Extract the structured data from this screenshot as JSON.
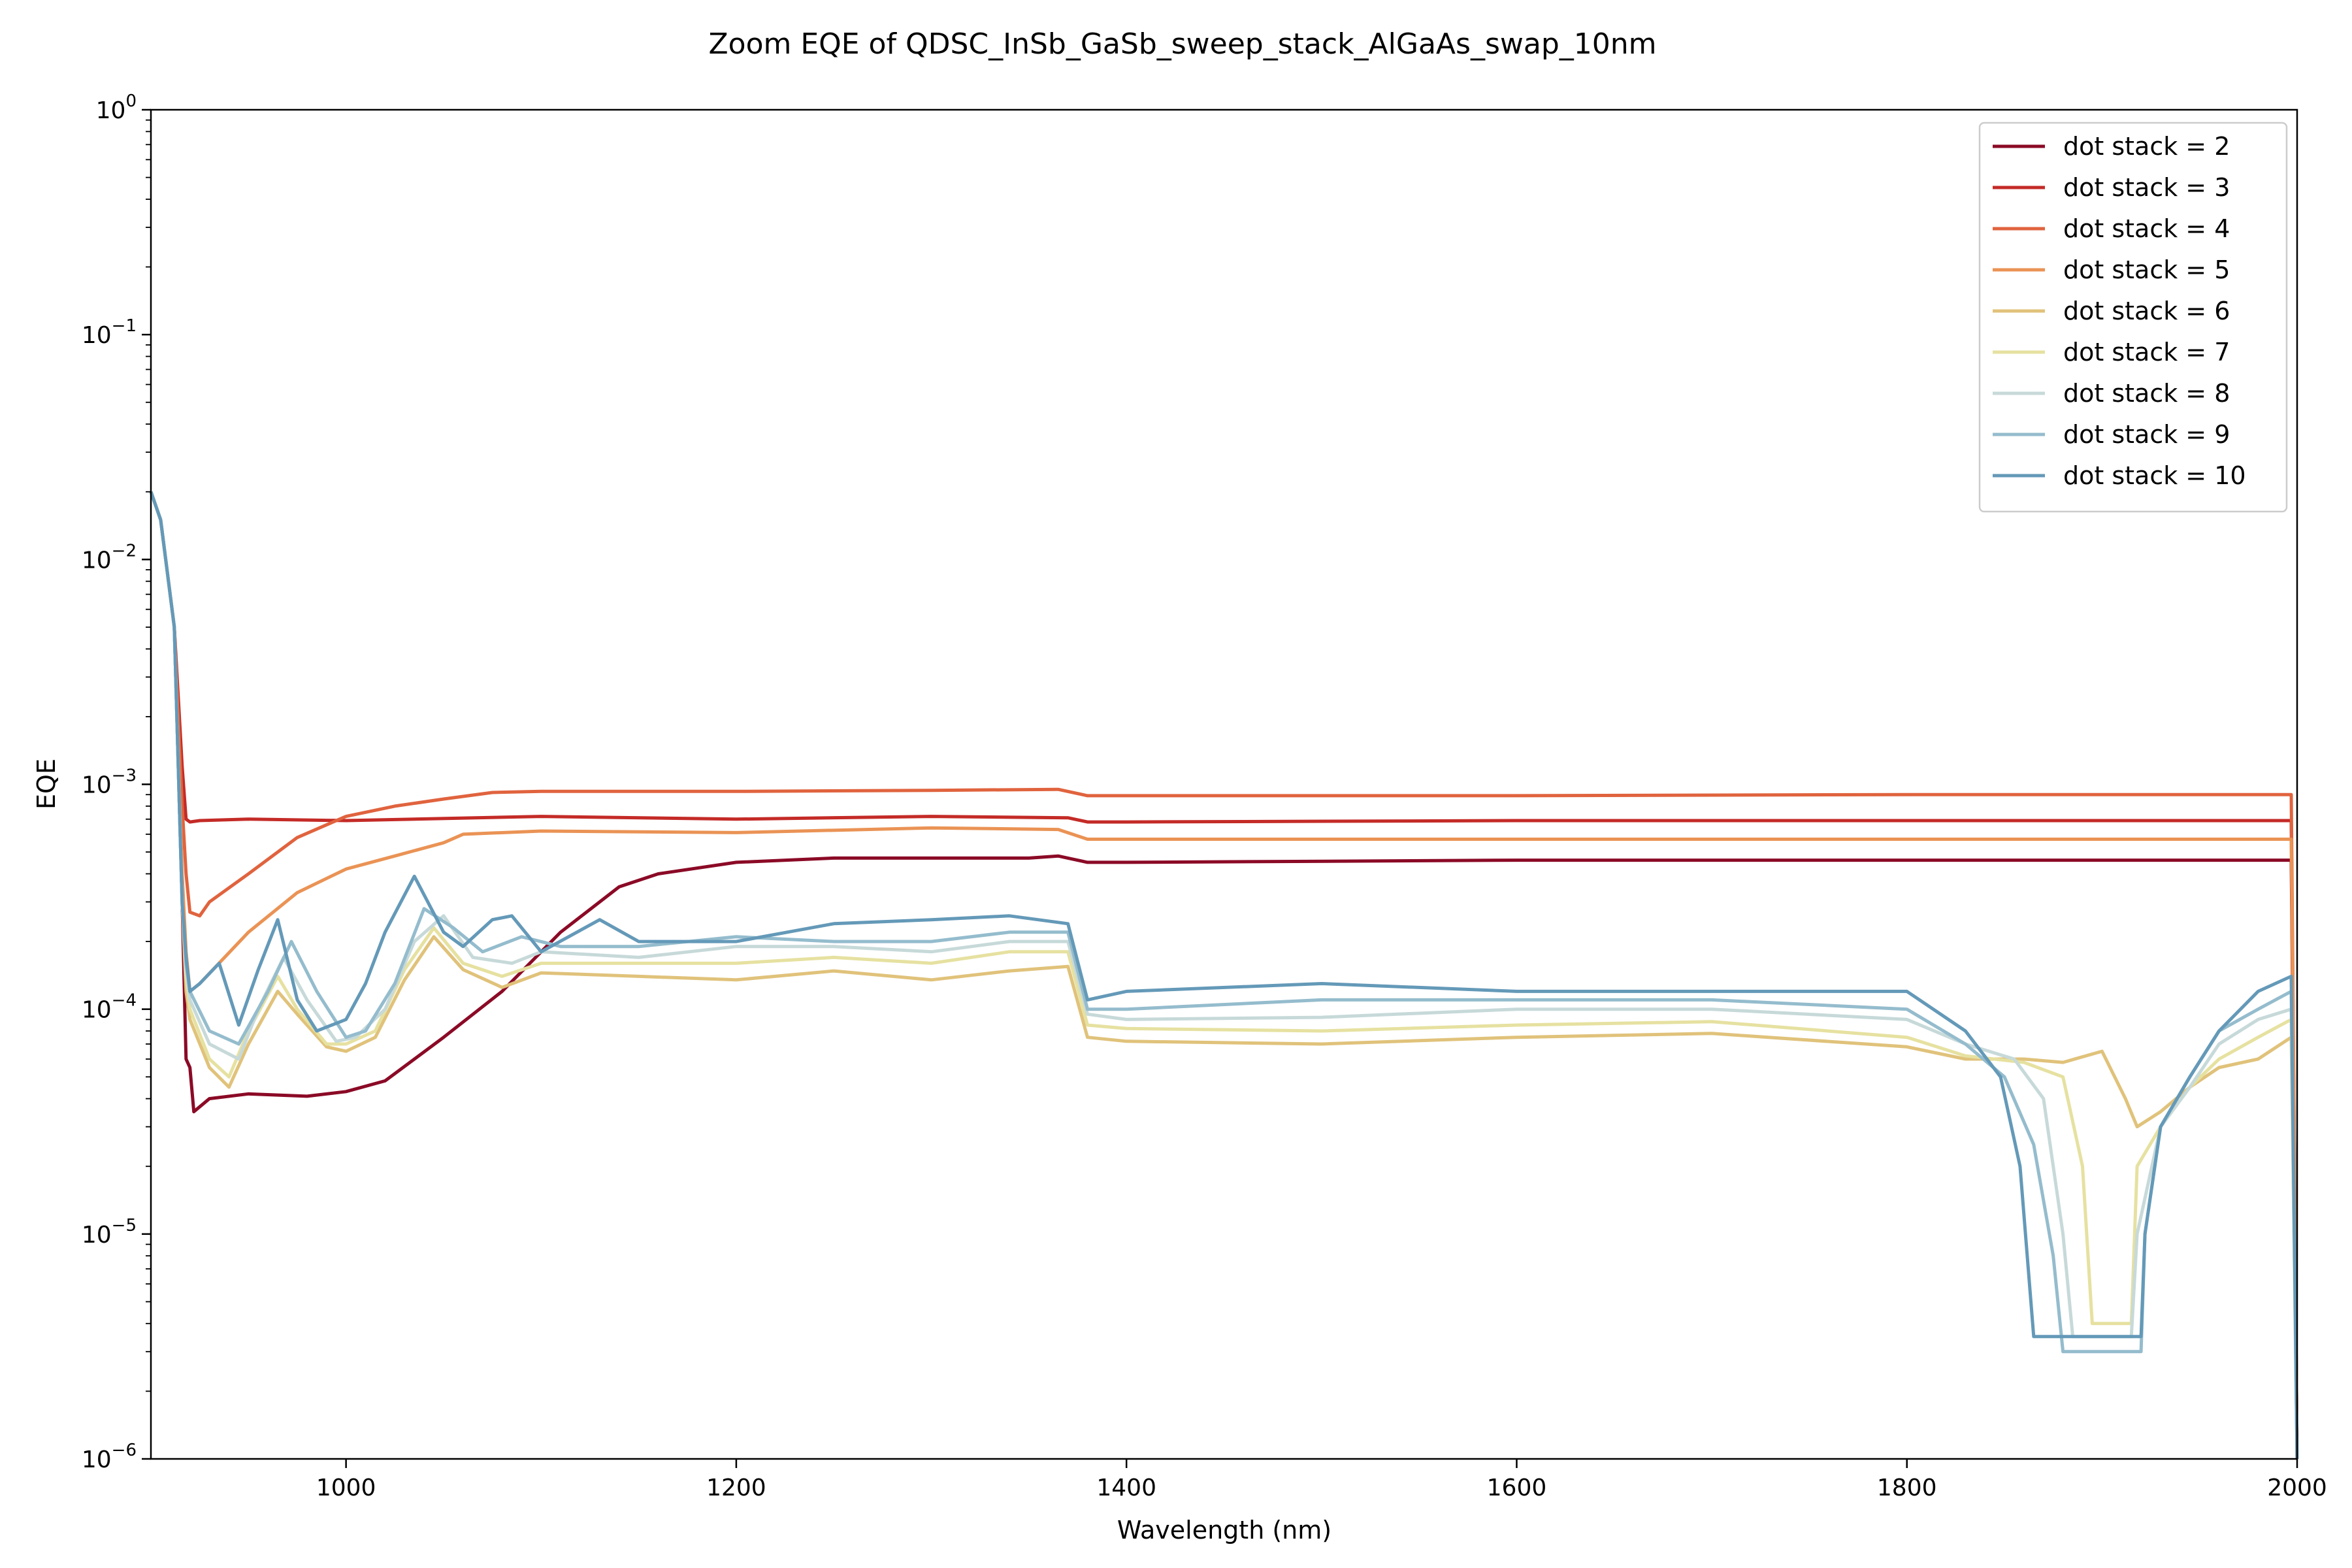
{
  "chart_data": {
    "type": "line",
    "title": "Zoom EQE of QDSC_InSb_GaSb_sweep_stack_AlGaAs_swap_10nm",
    "xlabel": "Wavelength (nm)",
    "ylabel": "EQE",
    "xlim": [
      900,
      2000
    ],
    "ylim": [
      1e-06,
      1
    ],
    "yscale": "log",
    "x_ticks": [
      "1000",
      "1200",
      "1400",
      "1600",
      "1800",
      "2000"
    ],
    "y_ticks": [
      {
        "base": "10",
        "exp": "−6",
        "value": 1e-06
      },
      {
        "base": "10",
        "exp": "−5",
        "value": 1e-05
      },
      {
        "base": "10",
        "exp": "−4",
        "value": 0.0001
      },
      {
        "base": "10",
        "exp": "−3",
        "value": 0.001
      },
      {
        "base": "10",
        "exp": "−2",
        "value": 0.01
      },
      {
        "base": "10",
        "exp": "−1",
        "value": 0.1
      },
      {
        "base": "10",
        "exp": "0",
        "value": 1
      }
    ],
    "grid": false,
    "legend_position": "top-right",
    "series": [
      {
        "name": "dot stack = 2",
        "color": "#8b0a26",
        "x": [
          900,
          905,
          912,
          916,
          918,
          920,
          922,
          930,
          950,
          980,
          1000,
          1020,
          1050,
          1080,
          1110,
          1140,
          1160,
          1200,
          1250,
          1300,
          1350,
          1365,
          1370,
          1380,
          1400,
          1600,
          1800,
          1997,
          2000
        ],
        "y": [
          0.02,
          0.015,
          0.005,
          0.0003,
          6e-05,
          5.5e-05,
          3.5e-05,
          4e-05,
          4.2e-05,
          4.1e-05,
          4.3e-05,
          4.8e-05,
          7.5e-05,
          0.00012,
          0.00022,
          0.00035,
          0.0004,
          0.00045,
          0.00047,
          0.00047,
          0.00047,
          0.00048,
          0.00047,
          0.00045,
          0.00045,
          0.00046,
          0.00046,
          0.00046,
          1e-06
        ]
      },
      {
        "name": "dot stack = 3",
        "color": "#c42b27",
        "x": [
          900,
          905,
          912,
          916,
          918,
          920,
          925,
          950,
          1000,
          1100,
          1200,
          1300,
          1370,
          1380,
          1400,
          1600,
          1800,
          1997,
          2000
        ],
        "y": [
          0.02,
          0.015,
          0.005,
          0.0012,
          0.0007,
          0.00068,
          0.00069,
          0.0007,
          0.00069,
          0.00072,
          0.0007,
          0.00072,
          0.00071,
          0.00068,
          0.00068,
          0.00069,
          0.00069,
          0.00069,
          1e-06
        ]
      },
      {
        "name": "dot stack = 4",
        "color": "#e0633e",
        "x": [
          900,
          905,
          912,
          916,
          918,
          920,
          925,
          930,
          950,
          975,
          1000,
          1025,
          1050,
          1075,
          1100,
          1200,
          1300,
          1365,
          1380,
          1400,
          1600,
          1800,
          1997,
          2000
        ],
        "y": [
          0.02,
          0.015,
          0.005,
          0.0008,
          0.0004,
          0.00027,
          0.00026,
          0.0003,
          0.0004,
          0.00058,
          0.00072,
          0.0008,
          0.00086,
          0.00092,
          0.00093,
          0.00093,
          0.00094,
          0.00095,
          0.00089,
          0.00089,
          0.00089,
          0.0009,
          0.0009,
          1e-06
        ]
      },
      {
        "name": "dot stack = 5",
        "color": "#ea9355",
        "x": [
          900,
          905,
          912,
          916,
          918,
          920,
          925,
          950,
          975,
          1000,
          1025,
          1050,
          1060,
          1100,
          1200,
          1300,
          1365,
          1380,
          1400,
          1600,
          1800,
          1997,
          2000
        ],
        "y": [
          0.02,
          0.015,
          0.005,
          0.0004,
          0.00018,
          0.00012,
          0.00013,
          0.00022,
          0.00033,
          0.00042,
          0.00048,
          0.00055,
          0.0006,
          0.00062,
          0.00061,
          0.00064,
          0.00063,
          0.00057,
          0.00057,
          0.00057,
          0.00057,
          0.00057,
          1e-06
        ]
      },
      {
        "name": "dot stack = 6",
        "color": "#e0c27a",
        "x": [
          900,
          905,
          912,
          916,
          918,
          920,
          930,
          940,
          950,
          965,
          975,
          990,
          1000,
          1015,
          1030,
          1045,
          1060,
          1080,
          1100,
          1150,
          1200,
          1250,
          1300,
          1340,
          1370,
          1380,
          1400,
          1500,
          1600,
          1700,
          1800,
          1830,
          1860,
          1880,
          1900,
          1912,
          1918,
          1930,
          1945,
          1960,
          1980,
          1997,
          2000
        ],
        "y": [
          0.02,
          0.015,
          0.005,
          0.0003,
          0.00012,
          9e-05,
          5.5e-05,
          4.5e-05,
          7e-05,
          0.00012,
          9.5e-05,
          6.8e-05,
          6.5e-05,
          7.5e-05,
          0.000135,
          0.00021,
          0.00015,
          0.000125,
          0.000145,
          0.00014,
          0.000135,
          0.000148,
          0.000135,
          0.000148,
          0.000155,
          7.5e-05,
          7.2e-05,
          7e-05,
          7.5e-05,
          7.8e-05,
          6.8e-05,
          6e-05,
          6e-05,
          5.8e-05,
          6.5e-05,
          4e-05,
          3e-05,
          3.5e-05,
          4.5e-05,
          5.5e-05,
          6e-05,
          7.5e-05,
          1e-06
        ]
      },
      {
        "name": "dot stack = 7",
        "color": "#e6e1a0",
        "x": [
          900,
          905,
          912,
          916,
          918,
          920,
          930,
          940,
          950,
          965,
          975,
          990,
          1000,
          1015,
          1030,
          1045,
          1060,
          1080,
          1100,
          1150,
          1200,
          1250,
          1300,
          1340,
          1370,
          1380,
          1400,
          1500,
          1600,
          1700,
          1800,
          1830,
          1860,
          1880,
          1890,
          1895,
          1915,
          1918,
          1930,
          1945,
          1960,
          1980,
          1997,
          2000
        ],
        "y": [
          0.02,
          0.015,
          0.005,
          0.0003,
          0.00014,
          0.0001,
          6e-05,
          5e-05,
          8e-05,
          0.00014,
          0.0001,
          7e-05,
          7e-05,
          8e-05,
          0.00015,
          0.00023,
          0.00016,
          0.00014,
          0.00016,
          0.00016,
          0.00016,
          0.00017,
          0.00016,
          0.00018,
          0.00018,
          8.5e-05,
          8.2e-05,
          8e-05,
          8.5e-05,
          8.8e-05,
          7.5e-05,
          6.2e-05,
          5.8e-05,
          5e-05,
          2e-05,
          4e-06,
          4e-06,
          2e-05,
          3e-05,
          4.5e-05,
          6e-05,
          7.5e-05,
          9e-05,
          1e-06
        ]
      },
      {
        "name": "dot stack = 8",
        "color": "#c7d9d9",
        "x": [
          900,
          905,
          912,
          916,
          918,
          920,
          930,
          945,
          955,
          968,
          980,
          995,
          1005,
          1020,
          1035,
          1050,
          1065,
          1085,
          1100,
          1150,
          1200,
          1250,
          1300,
          1340,
          1370,
          1380,
          1400,
          1500,
          1600,
          1700,
          1800,
          1830,
          1855,
          1870,
          1880,
          1885,
          1915,
          1918,
          1930,
          1945,
          1960,
          1980,
          1997,
          2000
        ],
        "y": [
          0.02,
          0.015,
          0.005,
          0.0003,
          0.00015,
          0.00011,
          7e-05,
          6e-05,
          0.0001,
          0.00017,
          0.00011,
          7.2e-05,
          7.5e-05,
          0.0001,
          0.0002,
          0.00026,
          0.00017,
          0.00016,
          0.00018,
          0.00017,
          0.00019,
          0.00019,
          0.00018,
          0.0002,
          0.0002,
          9.5e-05,
          9e-05,
          9.2e-05,
          0.0001,
          0.0001,
          9e-05,
          7e-05,
          6e-05,
          4e-05,
          1e-05,
          3.5e-06,
          3.5e-06,
          1e-05,
          3e-05,
          4.5e-05,
          7e-05,
          9e-05,
          0.0001,
          1e-06
        ]
      },
      {
        "name": "dot stack = 9",
        "color": "#94bccd",
        "x": [
          900,
          905,
          912,
          916,
          918,
          920,
          930,
          945,
          960,
          972,
          985,
          1000,
          1010,
          1025,
          1040,
          1055,
          1070,
          1090,
          1110,
          1150,
          1200,
          1250,
          1300,
          1340,
          1370,
          1380,
          1400,
          1500,
          1600,
          1700,
          1800,
          1830,
          1850,
          1865,
          1875,
          1880,
          1920,
          1922,
          1930,
          1945,
          1960,
          1980,
          1997,
          2000
        ],
        "y": [
          0.02,
          0.015,
          0.005,
          0.0003,
          0.00016,
          0.00012,
          8e-05,
          7e-05,
          0.00012,
          0.0002,
          0.00012,
          7.5e-05,
          8e-05,
          0.00013,
          0.00028,
          0.00023,
          0.00018,
          0.00021,
          0.00019,
          0.00019,
          0.00021,
          0.0002,
          0.0002,
          0.00022,
          0.00022,
          0.0001,
          0.0001,
          0.00011,
          0.00011,
          0.00011,
          0.0001,
          7e-05,
          5e-05,
          2.5e-05,
          8e-06,
          3e-06,
          3e-06,
          1e-05,
          3e-05,
          5e-05,
          8e-05,
          0.0001,
          0.00012,
          1e-06
        ]
      },
      {
        "name": "dot stack = 10",
        "color": "#6499b8",
        "x": [
          900,
          905,
          912,
          916,
          918,
          920,
          925,
          935,
          945,
          955,
          965,
          975,
          985,
          1000,
          1010,
          1020,
          1035,
          1050,
          1060,
          1075,
          1085,
          1100,
          1130,
          1150,
          1200,
          1250,
          1300,
          1340,
          1370,
          1380,
          1400,
          1500,
          1600,
          1700,
          1800,
          1830,
          1848,
          1858,
          1865,
          1920,
          1922,
          1930,
          1945,
          1960,
          1980,
          1997,
          2000
        ],
        "y": [
          0.02,
          0.015,
          0.005,
          0.0003,
          0.00017,
          0.00012,
          0.00013,
          0.00016,
          8.5e-05,
          0.00015,
          0.00025,
          0.00011,
          8e-05,
          9e-05,
          0.00013,
          0.00022,
          0.00039,
          0.00022,
          0.00019,
          0.00025,
          0.00026,
          0.00018,
          0.00025,
          0.0002,
          0.0002,
          0.00024,
          0.00025,
          0.00026,
          0.00024,
          0.00011,
          0.00012,
          0.00013,
          0.00012,
          0.00012,
          0.00012,
          8e-05,
          5e-05,
          2e-05,
          3.5e-06,
          3.5e-06,
          1e-05,
          3e-05,
          5e-05,
          8e-05,
          0.00012,
          0.00014,
          1e-06
        ]
      }
    ]
  }
}
